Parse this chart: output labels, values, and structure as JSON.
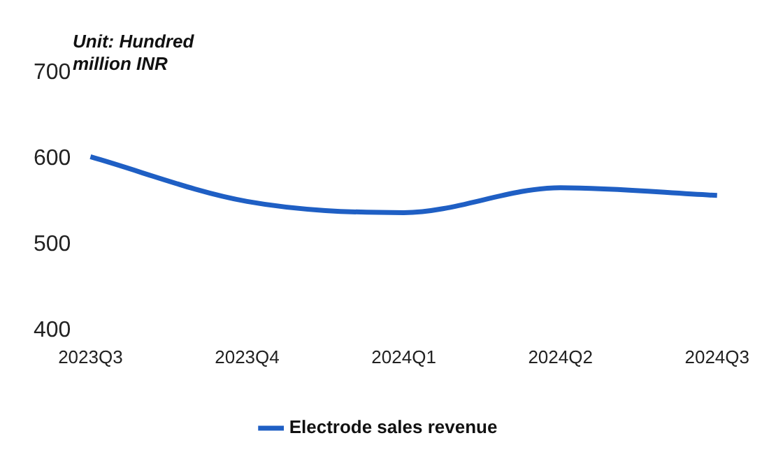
{
  "chart_data": {
    "type": "line",
    "categories": [
      "2023Q3",
      "2023Q4",
      "2024Q1",
      "2024Q2",
      "2024Q3"
    ],
    "series": [
      {
        "name": "Electrode sales revenue",
        "color": "#1f5fc4",
        "values": [
          602,
          550,
          537,
          566,
          557
        ]
      }
    ],
    "ylim": [
      400,
      700
    ],
    "yticks": [
      400,
      500,
      600,
      700
    ],
    "grid": false,
    "legend": "bottom",
    "marker": "none",
    "line_style": "solid",
    "annotations": [
      "Unit: Hundred million INR"
    ]
  }
}
